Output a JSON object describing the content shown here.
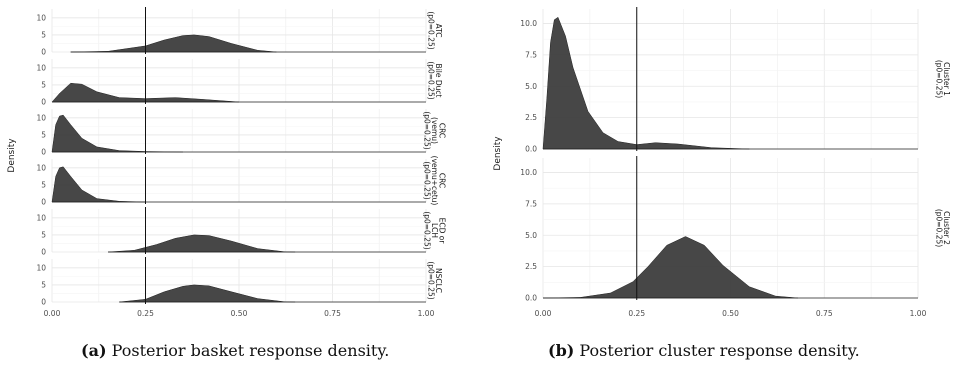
{
  "chart_data": [
    {
      "type": "area",
      "subtype": "faceted-density",
      "ylabel": "Density",
      "x_ticks": [
        "0.00",
        "0.25",
        "0.50",
        "0.75",
        "1.00"
      ],
      "y_ticks": [
        "0",
        "5",
        "10"
      ],
      "xlim": [
        0,
        1
      ],
      "ylim": [
        0,
        12
      ],
      "vline_x": 0.25,
      "fill_color": "#3d3d3d",
      "facets": [
        {
          "label_lines": [
            "ATC",
            "(p0=0.25)"
          ],
          "x": [
            0.05,
            0.15,
            0.25,
            0.3,
            0.35,
            0.38,
            0.42,
            0.48,
            0.55,
            0.6
          ],
          "y": [
            0,
            0.2,
            1.8,
            3.5,
            4.8,
            5.0,
            4.5,
            2.5,
            0.5,
            0
          ]
        },
        {
          "label_lines": [
            "Bile Duct",
            "(p0=0.25)"
          ],
          "x": [
            0.0,
            0.02,
            0.05,
            0.08,
            0.12,
            0.18,
            0.25,
            0.33,
            0.4,
            0.5
          ],
          "y": [
            0,
            2.5,
            5.5,
            5.2,
            3.0,
            1.3,
            1.0,
            1.3,
            0.8,
            0
          ]
        },
        {
          "label_lines": [
            "CRC",
            "(vemu)",
            "(p0=0.25)"
          ],
          "x": [
            0.0,
            0.01,
            0.02,
            0.03,
            0.05,
            0.08,
            0.12,
            0.18,
            0.25,
            0.35
          ],
          "y": [
            0,
            8.0,
            10.5,
            10.8,
            8.0,
            4.0,
            1.5,
            0.4,
            0.15,
            0
          ]
        },
        {
          "label_lines": [
            "CRC",
            "(vemu+cetu)",
            "(p0=0.25)"
          ],
          "x": [
            0.0,
            0.01,
            0.02,
            0.03,
            0.05,
            0.08,
            0.12,
            0.18,
            0.25
          ],
          "y": [
            0,
            7.5,
            10.0,
            10.3,
            7.5,
            3.5,
            1.0,
            0.2,
            0
          ]
        },
        {
          "label_lines": [
            "ECD or",
            "LCH",
            "(p0=0.25)"
          ],
          "x": [
            0.15,
            0.22,
            0.28,
            0.33,
            0.38,
            0.42,
            0.48,
            0.55,
            0.62,
            0.65
          ],
          "y": [
            0,
            0.5,
            2.2,
            4.0,
            5.0,
            4.8,
            3.2,
            1.0,
            0.1,
            0
          ]
        },
        {
          "label_lines": [
            "NSCLC",
            "(p0=0.25)"
          ],
          "x": [
            0.18,
            0.25,
            0.3,
            0.35,
            0.38,
            0.42,
            0.48,
            0.55,
            0.62,
            0.65
          ],
          "y": [
            0,
            0.8,
            3.0,
            4.6,
            5.0,
            4.7,
            3.0,
            1.0,
            0.1,
            0
          ]
        }
      ]
    },
    {
      "type": "area",
      "subtype": "faceted-density",
      "ylabel": "Density",
      "x_ticks": [
        "0.00",
        "0.25",
        "0.50",
        "0.75",
        "1.00"
      ],
      "y_ticks": [
        "0.0",
        "2.5",
        "5.0",
        "7.5",
        "10.0"
      ],
      "xlim": [
        0,
        1
      ],
      "ylim": [
        0,
        11
      ],
      "vline_x": 0.25,
      "fill_color": "#3d3d3d",
      "facets": [
        {
          "label_lines": [
            "Cluster 1",
            "(p0=0.25)"
          ],
          "x": [
            0.0,
            0.01,
            0.02,
            0.03,
            0.04,
            0.06,
            0.08,
            0.12,
            0.16,
            0.2,
            0.25,
            0.3,
            0.36,
            0.45,
            0.55
          ],
          "y": [
            0,
            4.0,
            8.5,
            10.3,
            10.5,
            9.0,
            6.5,
            3.0,
            1.3,
            0.6,
            0.35,
            0.5,
            0.4,
            0.1,
            0
          ]
        },
        {
          "label_lines": [
            "Cluster 2",
            "(p0=0.25)"
          ],
          "x": [
            0.0,
            0.1,
            0.18,
            0.24,
            0.28,
            0.33,
            0.38,
            0.43,
            0.48,
            0.55,
            0.62,
            0.68
          ],
          "y": [
            0,
            0.05,
            0.4,
            1.3,
            2.5,
            4.2,
            4.9,
            4.2,
            2.6,
            0.9,
            0.15,
            0
          ]
        }
      ]
    }
  ],
  "captions": [
    {
      "label": "(a)",
      "text": "Posterior basket response density."
    },
    {
      "label": "(b)",
      "text": "Posterior cluster response density."
    }
  ]
}
